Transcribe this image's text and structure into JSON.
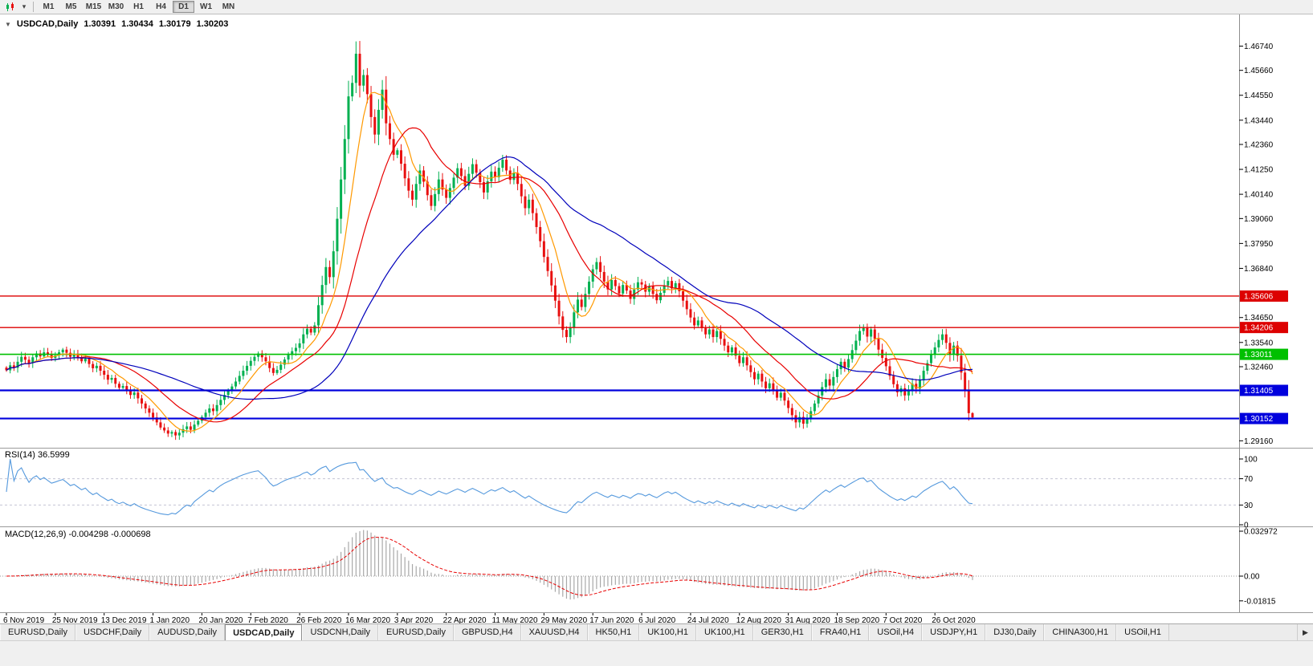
{
  "toolbar": {
    "dropdown_icon": "▾",
    "timeframes": [
      "M1",
      "M5",
      "M15",
      "M30",
      "H1",
      "H4",
      "D1",
      "W1",
      "MN"
    ],
    "active_timeframe": "D1"
  },
  "chart_header": {
    "collapse_icon": "▼",
    "symbol": "USDCAD,Daily",
    "open": "1.30391",
    "high": "1.30434",
    "low": "1.30179",
    "close": "1.30203"
  },
  "panels": {
    "rsi_label": "RSI(14) 36.5999",
    "macd_label": "MACD(12,26,9) -0.004298 -0.000698"
  },
  "chart_data": {
    "type": "candlestick",
    "symbol": "USDCAD",
    "timeframe": "Daily",
    "x_labels": [
      "6 Nov 2019",
      "25 Nov 2019",
      "13 Dec 2019",
      "1 Jan 2020",
      "20 Jan 2020",
      "7 Feb 2020",
      "26 Feb 2020",
      "16 Mar 2020",
      "3 Apr 2020",
      "22 Apr 2020",
      "11 May 2020",
      "29 May 2020",
      "17 Jun 2020",
      "6 Jul 2020",
      "24 Jul 2020",
      "12 Aug 2020",
      "31 Aug 2020",
      "18 Sep 2020",
      "7 Oct 2020",
      "26 Oct 2020"
    ],
    "candles_per_label": 13,
    "closes": [
      1.323,
      1.3252,
      1.3241,
      1.3268,
      1.329,
      1.3277,
      1.3262,
      1.3288,
      1.3305,
      1.3292,
      1.331,
      1.3298,
      1.3285,
      1.3296,
      1.331,
      1.3322,
      1.3308,
      1.329,
      1.3301,
      1.3286,
      1.327,
      1.3282,
      1.3258,
      1.3239,
      1.325,
      1.3228,
      1.321,
      1.3188,
      1.3196,
      1.317,
      1.3152,
      1.316,
      1.3138,
      1.312,
      1.3131,
      1.3105,
      1.3082,
      1.306,
      1.3041,
      1.302,
      1.2998,
      1.2975,
      1.2962,
      1.2948,
      1.2955,
      1.294,
      1.2952,
      1.2968,
      1.298,
      1.2965,
      1.2988,
      1.3005,
      1.3022,
      1.3041,
      1.306,
      1.3048,
      1.3075,
      1.3098,
      1.312,
      1.3139,
      1.3158,
      1.318,
      1.3205,
      1.3228,
      1.325,
      1.3272,
      1.329,
      1.3305,
      1.3288,
      1.327,
      1.324,
      1.3218,
      1.3232,
      1.3255,
      1.3278,
      1.3298,
      1.3315,
      1.333,
      1.335,
      1.339,
      1.3415,
      1.3398,
      1.343,
      1.352,
      1.361,
      1.369,
      1.3645,
      1.376,
      1.3905,
      1.408,
      1.426,
      1.445,
      1.451,
      1.464,
      1.4498,
      1.4545,
      1.446,
      1.4358,
      1.428,
      1.439,
      1.448,
      1.433,
      1.426,
      1.419,
      1.421,
      1.415,
      1.4085,
      1.403,
      1.399,
      1.406,
      1.412,
      1.407,
      1.401,
      1.3962,
      1.4015,
      1.408,
      1.4035,
      1.3998,
      1.4042,
      1.4088,
      1.413,
      1.4095,
      1.4052,
      1.4105,
      1.4148,
      1.411,
      1.4068,
      1.4022,
      1.4072,
      1.4115,
      1.409,
      1.4132,
      1.4168,
      1.412,
      1.4078,
      1.411,
      1.406,
      1.4005,
      1.3952,
      1.399,
      1.393,
      1.3868,
      1.3805,
      1.3735,
      1.3672,
      1.3608,
      1.354,
      1.347,
      1.341,
      1.3378,
      1.342,
      1.3488,
      1.3545,
      1.3512,
      1.357,
      1.3625,
      1.368,
      1.3712,
      1.3668,
      1.3625,
      1.359,
      1.3632,
      1.3605,
      1.3572,
      1.361,
      1.3585,
      1.3548,
      1.359,
      1.3622,
      1.3612,
      1.358,
      1.3605,
      1.357,
      1.3542,
      1.3575,
      1.3608,
      1.3628,
      1.3595,
      1.3618,
      1.3582,
      1.354,
      1.3502,
      1.3465,
      1.343,
      1.3452,
      1.3418,
      1.339,
      1.3412,
      1.3378,
      1.3405,
      1.337,
      1.334,
      1.331,
      1.3332,
      1.3295,
      1.3262,
      1.3288,
      1.3252,
      1.3222,
      1.319,
      1.3215,
      1.318,
      1.315,
      1.3172,
      1.3138,
      1.3108,
      1.313,
      1.3095,
      1.3062,
      1.303,
      1.2998,
      1.3022,
      1.2992,
      1.3015,
      1.3048,
      1.3082,
      1.3118,
      1.3155,
      1.319,
      1.3162,
      1.32,
      1.3235,
      1.3268,
      1.3242,
      1.328,
      1.332,
      1.3362,
      1.3405,
      1.3418,
      1.338,
      1.3412,
      1.337,
      1.3322,
      1.3285,
      1.3248,
      1.3205,
      1.3168,
      1.3132,
      1.315,
      1.3118,
      1.3142,
      1.317,
      1.3148,
      1.3185,
      1.3228,
      1.3262,
      1.33,
      1.3332,
      1.3365,
      1.339,
      1.3352,
      1.33,
      1.334,
      1.3295,
      1.322,
      1.314,
      1.3039,
      1.302
    ],
    "last_candle": {
      "open": 1.30391,
      "high": 1.30434,
      "low": 1.30179,
      "close": 1.30203
    },
    "y_axis_labels": [
      "1.46740",
      "1.45660",
      "1.44550",
      "1.43440",
      "1.42360",
      "1.41250",
      "1.40140",
      "1.39060",
      "1.37950",
      "1.36840",
      "1.34650",
      "1.33540",
      "1.32460",
      "1.29160"
    ],
    "y_range": {
      "top": 1.4815,
      "bottom": 1.2885
    },
    "up_color": "#00b050",
    "down_color": "#e81010",
    "hlines": [
      {
        "value": 1.35606,
        "label": "1.35606",
        "color": "#dd0000",
        "width": 1.4
      },
      {
        "value": 1.34206,
        "label": "1.34206",
        "color": "#dd0000",
        "width": 1.4
      },
      {
        "value": 1.33011,
        "label": "1.33011",
        "color": "#00c000",
        "width": 1.6
      },
      {
        "value": 1.31405,
        "label": "1.31405",
        "color": "#0000dd",
        "width": 2.2
      },
      {
        "value": 1.30152,
        "label": "1.30152",
        "color": "#0000dd",
        "width": 2.2
      }
    ],
    "moving_averages": [
      {
        "period": 8,
        "color": "#ff9900"
      },
      {
        "period": 20,
        "color": "#e80000"
      },
      {
        "period": 45,
        "color": "#0000bb"
      }
    ],
    "rsi": {
      "period": 14,
      "value": "36.5999",
      "levels": [
        "100",
        "70",
        "30",
        "0"
      ],
      "color": "#5599dd"
    },
    "macd": {
      "fast": 12,
      "slow": 26,
      "signal": 9,
      "macd_value": "-0.004298",
      "signal_value": "-0.000698",
      "axis_labels": [
        "0.032972",
        "0.00",
        "-0.01815"
      ],
      "histogram_color": "#a8a8a8",
      "signal_color": "#e80000"
    }
  },
  "tabs": {
    "items": [
      "EURUSD,Daily",
      "USDCHF,Daily",
      "AUDUSD,Daily",
      "USDCAD,Daily",
      "USDCNH,Daily",
      "EURUSD,Daily",
      "GBPUSD,H4",
      "XAUUSD,H4",
      "HK50,H1",
      "UK100,H1",
      "UK100,H1",
      "GER30,H1",
      "FRA40,H1",
      "USOil,H4",
      "USDJPY,H1",
      "DJ30,Daily",
      "CHINA300,H1",
      "USOil,H1"
    ],
    "active_index": 3,
    "scroll_right_icon": "▶"
  }
}
